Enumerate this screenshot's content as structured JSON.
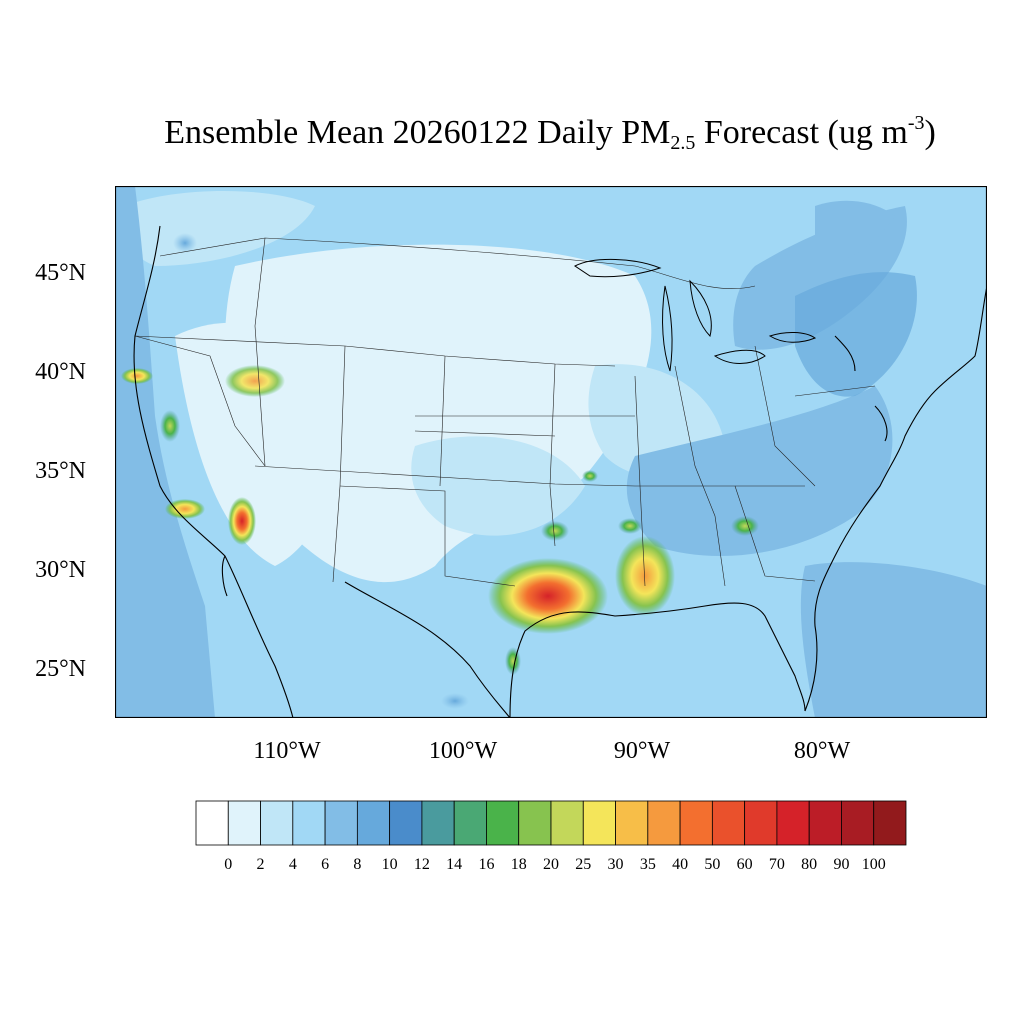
{
  "title": {
    "prefix": "Ensemble Mean 20260122 Daily PM",
    "subscript": "2.5",
    "middle": " Forecast (ug m",
    "superscript": "-3",
    "suffix": ")"
  },
  "lat_labels": [
    "45°N",
    "40°N",
    "35°N",
    "30°N",
    "25°N"
  ],
  "lon_labels": [
    "110°W",
    "100°W",
    "90°W",
    "80°W"
  ],
  "colorbar": {
    "labels": [
      "0",
      "2",
      "4",
      "6",
      "8",
      "10",
      "12",
      "14",
      "16",
      "18",
      "20",
      "25",
      "30",
      "35",
      "40",
      "50",
      "60",
      "70",
      "80",
      "90",
      "100"
    ],
    "colors": [
      "#ffffff",
      "#e0f3fb",
      "#c0e6f7",
      "#a1d8f5",
      "#82bde6",
      "#66a9dc",
      "#4a8ccb",
      "#4a9b9e",
      "#4aa874",
      "#4ab34a",
      "#87c34f",
      "#c3d75a",
      "#f4e55a",
      "#f7be48",
      "#f59a3e",
      "#f36f2f",
      "#ea512c",
      "#e03a2b",
      "#d52229",
      "#bc1d27",
      "#a81c23",
      "#921a1c"
    ]
  }
}
